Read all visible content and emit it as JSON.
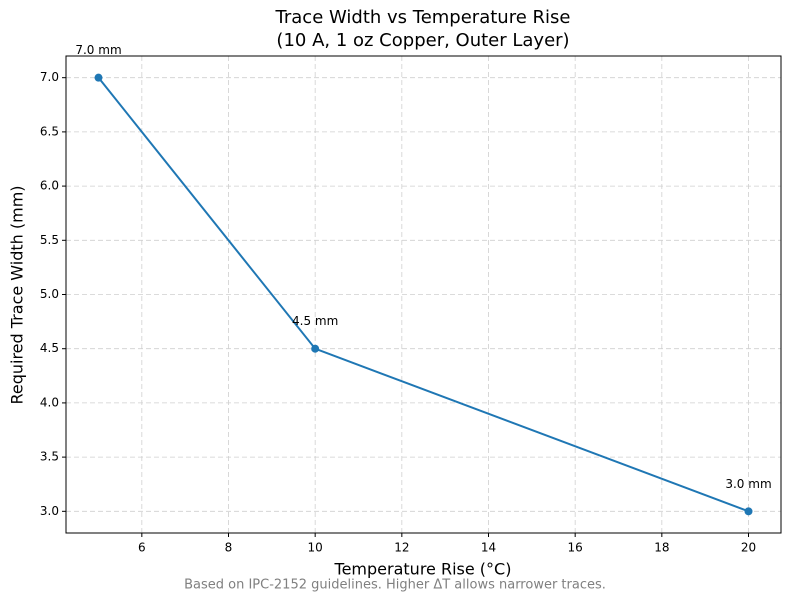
{
  "chart_data": {
    "type": "line",
    "title": "Trace Width vs Temperature Rise",
    "subtitle": "(10 A, 1 oz Copper, Outer Layer)",
    "x_label": "Temperature Rise (°C)",
    "y_label": "Required Trace Width (mm)",
    "x": [
      5,
      10,
      20
    ],
    "series": [
      {
        "name": "Required Trace Width",
        "color": "#1f77b4",
        "values": [
          7.0,
          4.5,
          3.0
        ],
        "value_labels": [
          "7.0 mm",
          "4.5 mm",
          "3.0 mm"
        ]
      }
    ],
    "xlim": [
      4.25,
      20.75
    ],
    "ylim": [
      2.8,
      7.2
    ],
    "xticks": [
      6,
      8,
      10,
      12,
      14,
      16,
      18,
      20
    ],
    "yticks": [
      {
        "value": 3.0,
        "label": "3.0"
      },
      {
        "value": 3.5,
        "label": "3.5"
      },
      {
        "value": 4.0,
        "label": "4.0"
      },
      {
        "value": 4.5,
        "label": "4.5"
      },
      {
        "value": 5.0,
        "label": "5.0"
      },
      {
        "value": 5.5,
        "label": "5.5"
      },
      {
        "value": 6.0,
        "label": "6.0"
      },
      {
        "value": 6.5,
        "label": "6.5"
      },
      {
        "value": 7.0,
        "label": "7.0"
      }
    ],
    "grid": true,
    "annotation": "Based on IPC-2152 guidelines. Higher ΔT allows narrower traces."
  }
}
